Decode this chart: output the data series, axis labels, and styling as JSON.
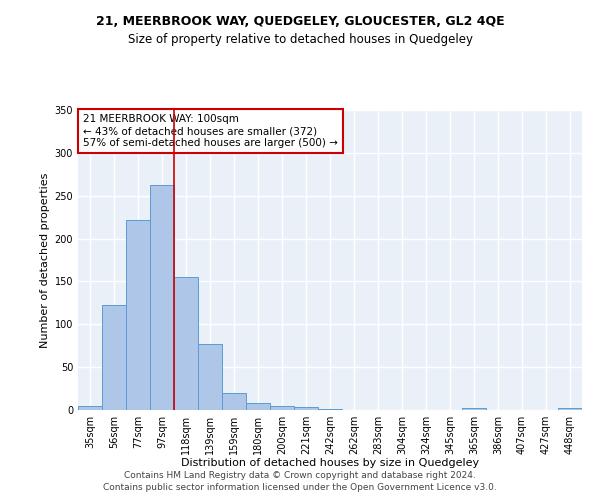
{
  "title1": "21, MEERBROOK WAY, QUEDGELEY, GLOUCESTER, GL2 4QE",
  "title2": "Size of property relative to detached houses in Quedgeley",
  "xlabel": "Distribution of detached houses by size in Quedgeley",
  "ylabel": "Number of detached properties",
  "footer1": "Contains HM Land Registry data © Crown copyright and database right 2024.",
  "footer2": "Contains public sector information licensed under the Open Government Licence v3.0.",
  "annotation_line1": "21 MEERBROOK WAY: 100sqm",
  "annotation_line2": "← 43% of detached houses are smaller (372)",
  "annotation_line3": "57% of semi-detached houses are larger (500) →",
  "categories": [
    "35sqm",
    "56sqm",
    "77sqm",
    "97sqm",
    "118sqm",
    "139sqm",
    "159sqm",
    "180sqm",
    "200sqm",
    "221sqm",
    "242sqm",
    "262sqm",
    "283sqm",
    "304sqm",
    "324sqm",
    "345sqm",
    "365sqm",
    "386sqm",
    "407sqm",
    "427sqm",
    "448sqm"
  ],
  "values": [
    5,
    122,
    222,
    262,
    155,
    77,
    20,
    8,
    5,
    3,
    1,
    0,
    0,
    0,
    0,
    0,
    2,
    0,
    0,
    0,
    2
  ],
  "bar_color": "#aec6e8",
  "bar_edge_color": "#5b9bd5",
  "vline_color": "#cc0000",
  "vline_position": 3.5,
  "ylim": [
    0,
    350
  ],
  "yticks": [
    0,
    50,
    100,
    150,
    200,
    250,
    300,
    350
  ],
  "bg_color": "#eaf0f8",
  "grid_color": "#ffffff",
  "annotation_box_color": "#ffffff",
  "annotation_border_color": "#cc0000",
  "title1_fontsize": 9,
  "title2_fontsize": 8.5,
  "xlabel_fontsize": 8,
  "ylabel_fontsize": 8,
  "tick_fontsize": 7,
  "footer_fontsize": 6.5,
  "annotation_fontsize": 7.5
}
